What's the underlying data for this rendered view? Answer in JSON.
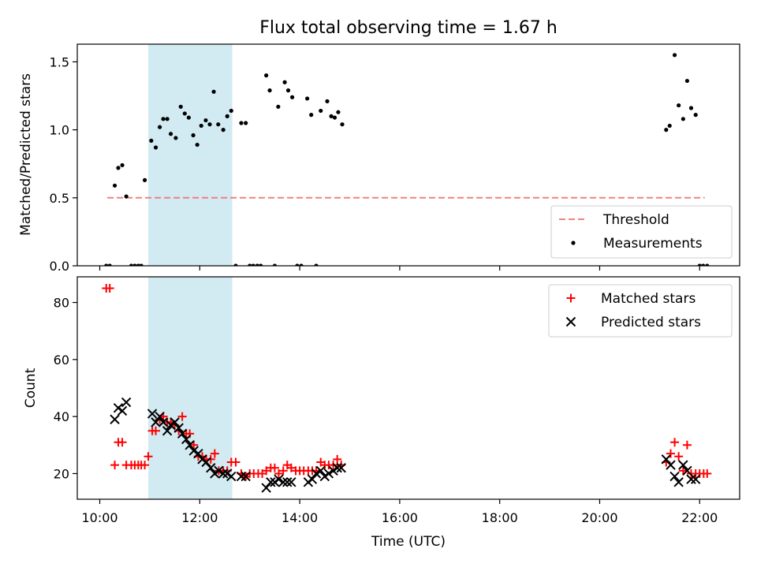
{
  "chart_data": {
    "title": "Flux total observing time = 1.67 h",
    "xlabel": "Time (UTC)",
    "xlim": [
      9.55,
      22.8
    ],
    "x_ticks": [
      10,
      12,
      14,
      16,
      18,
      20,
      22
    ],
    "x_tick_labels": [
      "10:00",
      "12:00",
      "14:00",
      "16:00",
      "18:00",
      "20:00",
      "22:00"
    ],
    "shaded_span": {
      "x": [
        10.97,
        12.65
      ],
      "color": "#add8e6"
    },
    "panels": [
      {
        "type": "scatter",
        "ylabel": "Matched/Predicted stars",
        "ylim": [
          0,
          1.63
        ],
        "y_ticks": [
          0.0,
          0.5,
          1.0,
          1.5
        ],
        "y_tick_labels": [
          "0.0",
          "0.5",
          "1.0",
          "1.5"
        ],
        "legend_position": "bottom-right",
        "series": [
          {
            "name": "Threshold",
            "kind": "dashed-line",
            "color": "#f08080",
            "x": [
              10.15,
              22.1
            ],
            "y": [
              0.5,
              0.5
            ]
          },
          {
            "name": "Measurements",
            "kind": "dot",
            "color": "#000000",
            "x": [
              10.13,
              10.2,
              10.3,
              10.37,
              10.45,
              10.53,
              10.63,
              10.7,
              10.77,
              10.83,
              10.9,
              11.03,
              11.12,
              11.2,
              11.27,
              11.35,
              11.42,
              11.52,
              11.62,
              11.7,
              11.78,
              11.87,
              11.95,
              12.03,
              12.12,
              12.2,
              12.28,
              12.37,
              12.47,
              12.55,
              12.63,
              12.72,
              12.83,
              12.92,
              13.0,
              13.07,
              13.15,
              13.22,
              13.33,
              13.4,
              13.5,
              13.57,
              13.7,
              13.77,
              13.85,
              13.95,
              14.03,
              14.15,
              14.23,
              14.33,
              14.42,
              14.55,
              14.63,
              14.7,
              14.77,
              14.85,
              21.33,
              21.4,
              21.5,
              21.58,
              21.67,
              21.75,
              21.83,
              21.92,
              22.0,
              22.07,
              22.15
            ],
            "y": [
              0.0,
              0.0,
              0.59,
              0.72,
              0.74,
              0.51,
              0.0,
              0.0,
              0.0,
              0.0,
              0.63,
              0.92,
              0.87,
              1.02,
              1.08,
              1.08,
              0.97,
              0.94,
              1.17,
              1.12,
              1.09,
              0.96,
              0.89,
              1.03,
              1.07,
              1.04,
              1.28,
              1.04,
              1.0,
              1.1,
              1.14,
              0.0,
              1.05,
              1.05,
              0.0,
              0.0,
              0.0,
              0.0,
              1.4,
              1.29,
              0.0,
              1.17,
              1.35,
              1.29,
              1.24,
              0.0,
              0.0,
              1.23,
              1.11,
              0.0,
              1.14,
              1.21,
              1.1,
              1.09,
              1.13,
              1.04,
              1.0,
              1.03,
              1.55,
              1.18,
              1.08,
              1.36,
              1.16,
              1.11,
              0.0,
              0.0,
              0.0
            ]
          }
        ]
      },
      {
        "type": "scatter",
        "ylabel": "Count",
        "ylim": [
          11,
          89
        ],
        "y_ticks": [
          20,
          40,
          60,
          80
        ],
        "y_tick_labels": [
          "20",
          "40",
          "60",
          "80"
        ],
        "legend_position": "top-right",
        "series": [
          {
            "name": "Matched stars",
            "kind": "plus",
            "color": "#ff0000",
            "x": [
              10.13,
              10.2,
              10.3,
              10.37,
              10.45,
              10.53,
              10.63,
              10.7,
              10.77,
              10.83,
              10.9,
              10.97,
              11.05,
              11.12,
              11.2,
              11.27,
              11.35,
              11.42,
              11.5,
              11.58,
              11.65,
              11.73,
              11.8,
              11.88,
              11.97,
              12.05,
              12.13,
              12.22,
              12.3,
              12.38,
              12.47,
              12.55,
              12.63,
              12.72,
              12.83,
              12.92,
              13.0,
              13.08,
              13.17,
              13.25,
              13.33,
              13.42,
              13.5,
              13.58,
              13.67,
              13.75,
              13.83,
              13.92,
              14.0,
              14.08,
              14.17,
              14.25,
              14.33,
              14.42,
              14.5,
              14.58,
              14.67,
              14.75,
              14.83,
              21.33,
              21.42,
              21.5,
              21.58,
              21.67,
              21.75,
              21.83,
              21.92,
              22.0,
              22.08,
              22.15
            ],
            "y": [
              85,
              85,
              23,
              31,
              31,
              23,
              23,
              23,
              23,
              23,
              23,
              26,
              35,
              35,
              39,
              40,
              38,
              38,
              37,
              35,
              40,
              34,
              34,
              30,
              26,
              26,
              25,
              25,
              27,
              21,
              21,
              21,
              24,
              24,
              20,
              19,
              20,
              20,
              20,
              20,
              21,
              22,
              22,
              20,
              21,
              23,
              22,
              21,
              21,
              21,
              21,
              21,
              21,
              24,
              23,
              23,
              23,
              25,
              23,
              24,
              27,
              31,
              26,
              21,
              30,
              20,
              20,
              20,
              20,
              20
            ]
          },
          {
            "name": "Predicted stars",
            "kind": "x",
            "color": "#000000",
            "x": [
              10.3,
              10.37,
              10.45,
              10.53,
              11.05,
              11.12,
              11.2,
              11.27,
              11.35,
              11.42,
              11.5,
              11.58,
              11.65,
              11.73,
              11.8,
              11.88,
              11.97,
              12.05,
              12.13,
              12.22,
              12.3,
              12.38,
              12.47,
              12.55,
              12.63,
              12.83,
              12.92,
              13.33,
              13.42,
              13.5,
              13.58,
              13.67,
              13.75,
              13.83,
              14.17,
              14.25,
              14.33,
              14.42,
              14.5,
              14.58,
              14.67,
              14.75,
              14.83,
              21.33,
              21.42,
              21.5,
              21.58,
              21.67,
              21.75,
              21.83,
              21.92
            ],
            "y": [
              39,
              43,
              42,
              45,
              41,
              38,
              40,
              38,
              35,
              37,
              38,
              36,
              34,
              32,
              30,
              28,
              27,
              25,
              24,
              22,
              20,
              21,
              20,
              20,
              19,
              19,
              19,
              15,
              17,
              17,
              18,
              17,
              17,
              17,
              17,
              18,
              20,
              21,
              19,
              20,
              21,
              22,
              22,
              25,
              23,
              19,
              17,
              23,
              21,
              18,
              18
            ]
          }
        ]
      }
    ]
  }
}
